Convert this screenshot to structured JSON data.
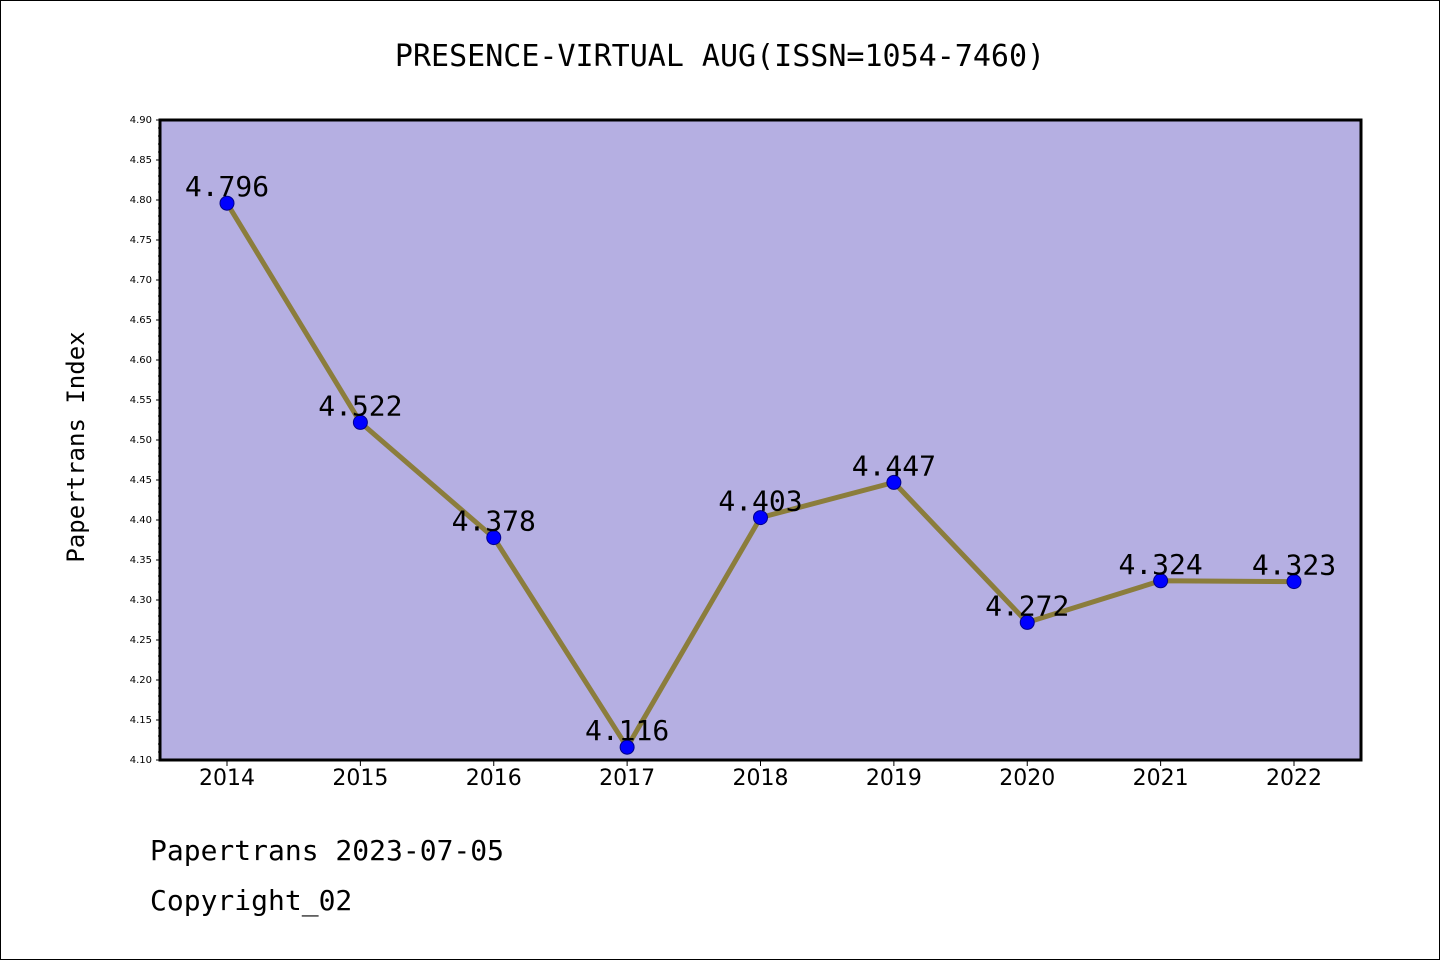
{
  "chart_data": {
    "type": "line",
    "title": "PRESENCE-VIRTUAL AUG(ISSN=1054-7460)",
    "xlabel": "",
    "ylabel": "Papertrans Index",
    "categories": [
      "2014",
      "2015",
      "2016",
      "2017",
      "2018",
      "2019",
      "2020",
      "2021",
      "2022"
    ],
    "values": [
      4.796,
      4.522,
      4.378,
      4.116,
      4.403,
      4.447,
      4.272,
      4.324,
      4.323
    ],
    "data_labels": [
      "4.796",
      "4.522",
      "4.378",
      "4.116",
      "4.403",
      "4.447",
      "4.272",
      "4.324",
      "4.323"
    ],
    "ylim": [
      4.1,
      4.9
    ],
    "yticks": [
      "4.10",
      "4.15",
      "4.20",
      "4.25",
      "4.30",
      "4.35",
      "4.40",
      "4.45",
      "4.50",
      "4.55",
      "4.60",
      "4.65",
      "4.70",
      "4.75",
      "4.80",
      "4.85",
      "4.90"
    ],
    "grid": false,
    "legend": "none",
    "colors": {
      "plot_background": "#b5afe2",
      "line": "#8b7d3c",
      "marker": "#0000ff",
      "axis": "#000000"
    }
  },
  "footer": {
    "date_line": "Papertrans 2023-07-05",
    "copyright_line": "Copyright_02"
  }
}
